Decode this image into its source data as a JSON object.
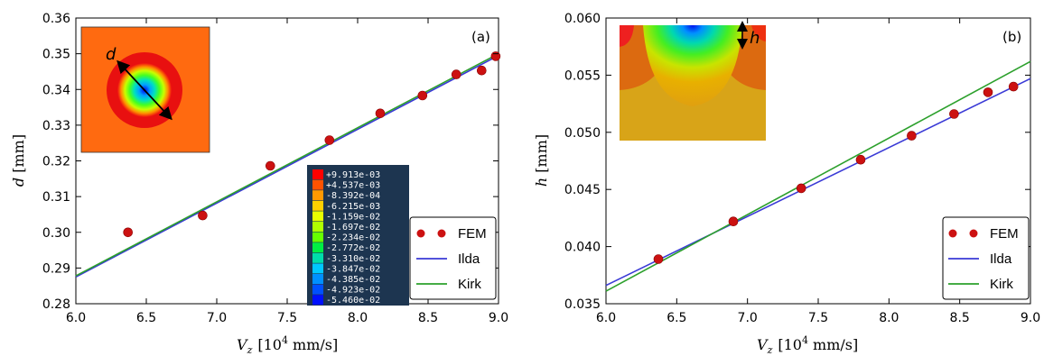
{
  "chart_data": [
    {
      "type": "line",
      "panel_label": "(a)",
      "xlabel_symbol": "V",
      "xlabel_sub": "z",
      "xlabel_unit": "[10",
      "xlabel_exp": "4",
      "xlabel_unit_end": " mm/s]",
      "ylabel_symbol": "d",
      "ylabel_unit": " [mm]",
      "xlim": [
        6.0,
        9.0
      ],
      "ylim": [
        0.28,
        0.36
      ],
      "xticks": [
        "6.0",
        "6.5",
        "7.0",
        "7.5",
        "8.0",
        "8.5",
        "9.0"
      ],
      "yticks": [
        "0.28",
        "0.29",
        "0.30",
        "0.31",
        "0.32",
        "0.33",
        "0.34",
        "0.35",
        "0.36"
      ],
      "grid": false,
      "legend_position": "lower-right",
      "series": [
        {
          "name": "FEM",
          "kind": "scatter",
          "color": "#cc1111",
          "x": [
            6.37,
            6.9,
            7.38,
            7.8,
            8.16,
            8.46,
            8.7,
            8.88,
            8.98
          ],
          "y": [
            0.3,
            0.3047,
            0.3186,
            0.3258,
            0.3333,
            0.3383,
            0.3442,
            0.3453,
            0.3493
          ]
        },
        {
          "name": "Ilda",
          "kind": "line",
          "color": "#3a3ad6",
          "x": [
            6.0,
            9.0
          ],
          "y": [
            0.2875,
            0.3495
          ]
        },
        {
          "name": "Kirk",
          "kind": "line",
          "color": "#2ca02c",
          "x": [
            6.0,
            9.0
          ],
          "y": [
            0.2878,
            0.35
          ]
        }
      ],
      "inset": {
        "annotation": "d"
      },
      "colorbar": {
        "labels": [
          "+9.913e-03",
          "+4.537e-03",
          "-8.392e-04",
          "-6.215e-03",
          "-1.159e-02",
          "-1.697e-02",
          "-2.234e-02",
          "-2.772e-02",
          "-3.310e-02",
          "-3.847e-02",
          "-4.385e-02",
          "-4.923e-02",
          "-5.460e-02"
        ],
        "colors": [
          "#ff0000",
          "#ff5200",
          "#ff9900",
          "#ffd000",
          "#e8ff00",
          "#b0ff00",
          "#66ff00",
          "#00ee44",
          "#00ddaa",
          "#00c8ff",
          "#0090ff",
          "#0050ff",
          "#0010ff"
        ]
      }
    },
    {
      "type": "line",
      "panel_label": "(b)",
      "xlabel_symbol": "V",
      "xlabel_sub": "z",
      "xlabel_unit": "[10",
      "xlabel_exp": "4",
      "xlabel_unit_end": " mm/s]",
      "ylabel_symbol": "h",
      "ylabel_unit": " [mm]",
      "xlim": [
        6.0,
        9.0
      ],
      "ylim": [
        0.035,
        0.06
      ],
      "xticks": [
        "6.0",
        "6.5",
        "7.0",
        "7.5",
        "8.0",
        "8.5",
        "9.0"
      ],
      "yticks": [
        "0.035",
        "0.040",
        "0.045",
        "0.050",
        "0.055",
        "0.060"
      ],
      "grid": false,
      "legend_position": "lower-right",
      "series": [
        {
          "name": "FEM",
          "kind": "scatter",
          "color": "#cc1111",
          "x": [
            6.37,
            6.9,
            7.38,
            7.8,
            8.16,
            8.46,
            8.7,
            8.88
          ],
          "y": [
            0.0389,
            0.0422,
            0.0451,
            0.0476,
            0.0497,
            0.0516,
            0.0535,
            0.054
          ]
        },
        {
          "name": "Ilda",
          "kind": "line",
          "color": "#3a3ad6",
          "x": [
            6.0,
            9.0
          ],
          "y": [
            0.0366,
            0.0547
          ]
        },
        {
          "name": "Kirk",
          "kind": "line",
          "color": "#2ca02c",
          "x": [
            6.0,
            9.0
          ],
          "y": [
            0.0361,
            0.0562
          ]
        }
      ],
      "inset": {
        "annotation": "h"
      }
    }
  ]
}
